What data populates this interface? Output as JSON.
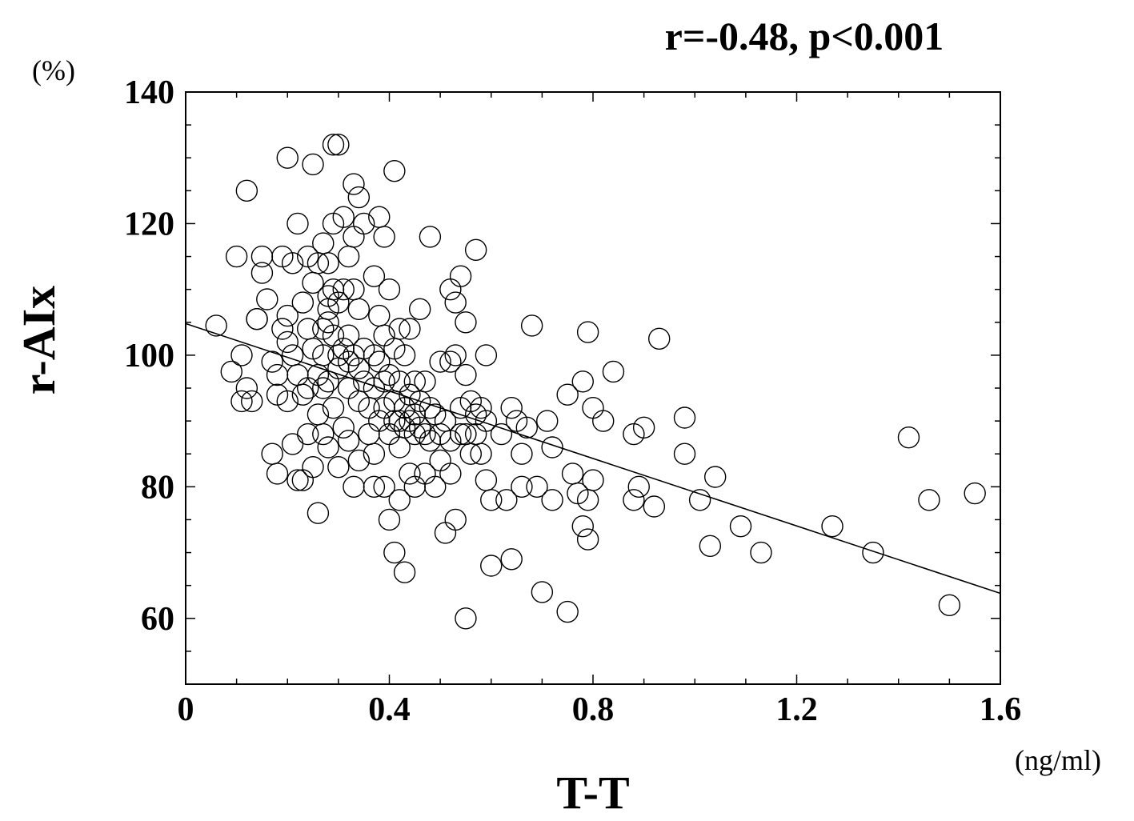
{
  "chart_data": {
    "type": "scatter",
    "annotation": "r=-0.48, p<0.001",
    "xlabel": "T-T",
    "ylabel": "r-AIx",
    "x_unit": "(ng/ml)",
    "y_unit": "(%)",
    "xlim": [
      0,
      1.6
    ],
    "ylim": [
      50,
      140
    ],
    "xticks": [
      {
        "value": 0,
        "label": "0"
      },
      {
        "value": 0.4,
        "label": "0.4"
      },
      {
        "value": 0.8,
        "label": "0.8"
      },
      {
        "value": 1.2,
        "label": "1.2"
      },
      {
        "value": 1.6,
        "label": "1.6"
      }
    ],
    "yticks": [
      {
        "value": 60,
        "label": "60"
      },
      {
        "value": 80,
        "label": "80"
      },
      {
        "value": 100,
        "label": "100"
      },
      {
        "value": 120,
        "label": "120"
      },
      {
        "value": 140,
        "label": "140"
      }
    ],
    "regression_line": [
      [
        0,
        104.8
      ],
      [
        1.6,
        63.8
      ]
    ],
    "points": [
      [
        0.06,
        104.5
      ],
      [
        0.09,
        97.5
      ],
      [
        0.1,
        115
      ],
      [
        0.11,
        100
      ],
      [
        0.11,
        93
      ],
      [
        0.12,
        95
      ],
      [
        0.12,
        125
      ],
      [
        0.13,
        93
      ],
      [
        0.14,
        105.5
      ],
      [
        0.14,
        105.5
      ],
      [
        0.15,
        115
      ],
      [
        0.15,
        112.5
      ],
      [
        0.16,
        108.5
      ],
      [
        0.17,
        99
      ],
      [
        0.17,
        85
      ],
      [
        0.18,
        97
      ],
      [
        0.18,
        82
      ],
      [
        0.18,
        94
      ],
      [
        0.19,
        104
      ],
      [
        0.19,
        115
      ],
      [
        0.2,
        106
      ],
      [
        0.2,
        102
      ],
      [
        0.2,
        93
      ],
      [
        0.2,
        130
      ],
      [
        0.21,
        114
      ],
      [
        0.21,
        100
      ],
      [
        0.21,
        86.5
      ],
      [
        0.22,
        81
      ],
      [
        0.22,
        97
      ],
      [
        0.22,
        120
      ],
      [
        0.23,
        108
      ],
      [
        0.23,
        94
      ],
      [
        0.23,
        81
      ],
      [
        0.24,
        115
      ],
      [
        0.24,
        104
      ],
      [
        0.24,
        88
      ],
      [
        0.24,
        95
      ],
      [
        0.25,
        111
      ],
      [
        0.25,
        101
      ],
      [
        0.25,
        83
      ],
      [
        0.25,
        129
      ],
      [
        0.26,
        114
      ],
      [
        0.26,
        91
      ],
      [
        0.26,
        97
      ],
      [
        0.26,
        76
      ],
      [
        0.27,
        117
      ],
      [
        0.27,
        104
      ],
      [
        0.27,
        100
      ],
      [
        0.27,
        88
      ],
      [
        0.27,
        95
      ],
      [
        0.28,
        114
      ],
      [
        0.28,
        109
      ],
      [
        0.28,
        107
      ],
      [
        0.28,
        105
      ],
      [
        0.28,
        96
      ],
      [
        0.28,
        86
      ],
      [
        0.29,
        110
      ],
      [
        0.29,
        103
      ],
      [
        0.29,
        92
      ],
      [
        0.29,
        120
      ],
      [
        0.29,
        132
      ],
      [
        0.3,
        108
      ],
      [
        0.3,
        100
      ],
      [
        0.3,
        98
      ],
      [
        0.3,
        83
      ],
      [
        0.3,
        132
      ],
      [
        0.31,
        121
      ],
      [
        0.31,
        110
      ],
      [
        0.31,
        101
      ],
      [
        0.31,
        89
      ],
      [
        0.32,
        115
      ],
      [
        0.32,
        103
      ],
      [
        0.32,
        99
      ],
      [
        0.32,
        95
      ],
      [
        0.32,
        87
      ],
      [
        0.33,
        118
      ],
      [
        0.33,
        110
      ],
      [
        0.33,
        100
      ],
      [
        0.33,
        80
      ],
      [
        0.33,
        126
      ],
      [
        0.34,
        124
      ],
      [
        0.34,
        107
      ],
      [
        0.34,
        98
      ],
      [
        0.34,
        93
      ],
      [
        0.34,
        84
      ],
      [
        0.35,
        120
      ],
      [
        0.35,
        101
      ],
      [
        0.35,
        96
      ],
      [
        0.36,
        92
      ],
      [
        0.36,
        88
      ],
      [
        0.37,
        112
      ],
      [
        0.37,
        100
      ],
      [
        0.37,
        95
      ],
      [
        0.37,
        85
      ],
      [
        0.37,
        80
      ],
      [
        0.38,
        106
      ],
      [
        0.38,
        99
      ],
      [
        0.38,
        90
      ],
      [
        0.38,
        121
      ],
      [
        0.39,
        118
      ],
      [
        0.39,
        103
      ],
      [
        0.39,
        96
      ],
      [
        0.39,
        92
      ],
      [
        0.39,
        80
      ],
      [
        0.4,
        110
      ],
      [
        0.4,
        97
      ],
      [
        0.4,
        88
      ],
      [
        0.4,
        75
      ],
      [
        0.41,
        101
      ],
      [
        0.41,
        93
      ],
      [
        0.41,
        90
      ],
      [
        0.41,
        70
      ],
      [
        0.41,
        128
      ],
      [
        0.42,
        104
      ],
      [
        0.42,
        96
      ],
      [
        0.42,
        90
      ],
      [
        0.42,
        86
      ],
      [
        0.42,
        78
      ],
      [
        0.43,
        100
      ],
      [
        0.43,
        92
      ],
      [
        0.43,
        89
      ],
      [
        0.43,
        67
      ],
      [
        0.44,
        104
      ],
      [
        0.44,
        94
      ],
      [
        0.44,
        90
      ],
      [
        0.44,
        82
      ],
      [
        0.45,
        96
      ],
      [
        0.45,
        91
      ],
      [
        0.45,
        88
      ],
      [
        0.45,
        80
      ],
      [
        0.46,
        107
      ],
      [
        0.46,
        93
      ],
      [
        0.46,
        89
      ],
      [
        0.47,
        96
      ],
      [
        0.47,
        88
      ],
      [
        0.47,
        82
      ],
      [
        0.48,
        118
      ],
      [
        0.48,
        92
      ],
      [
        0.48,
        87
      ],
      [
        0.49,
        91
      ],
      [
        0.49,
        80
      ],
      [
        0.5,
        99
      ],
      [
        0.5,
        88
      ],
      [
        0.5,
        84
      ],
      [
        0.51,
        90
      ],
      [
        0.51,
        73
      ],
      [
        0.52,
        110
      ],
      [
        0.52,
        99
      ],
      [
        0.52,
        87
      ],
      [
        0.52,
        82
      ],
      [
        0.53,
        108
      ],
      [
        0.53,
        100
      ],
      [
        0.53,
        75
      ],
      [
        0.54,
        112
      ],
      [
        0.54,
        92
      ],
      [
        0.54,
        88
      ],
      [
        0.55,
        105
      ],
      [
        0.55,
        97
      ],
      [
        0.55,
        88
      ],
      [
        0.55,
        60
      ],
      [
        0.56,
        93
      ],
      [
        0.56,
        85
      ],
      [
        0.57,
        116
      ],
      [
        0.57,
        91
      ],
      [
        0.57,
        88
      ],
      [
        0.58,
        92
      ],
      [
        0.58,
        85
      ],
      [
        0.59,
        100
      ],
      [
        0.59,
        90
      ],
      [
        0.59,
        81
      ],
      [
        0.6,
        78
      ],
      [
        0.6,
        68
      ],
      [
        0.62,
        88
      ],
      [
        0.63,
        78
      ],
      [
        0.64,
        92
      ],
      [
        0.64,
        69
      ],
      [
        0.65,
        90
      ],
      [
        0.66,
        85
      ],
      [
        0.66,
        80
      ],
      [
        0.67,
        89
      ],
      [
        0.68,
        104.5
      ],
      [
        0.69,
        80
      ],
      [
        0.7,
        64
      ],
      [
        0.71,
        90
      ],
      [
        0.72,
        86
      ],
      [
        0.72,
        78
      ],
      [
        0.75,
        94
      ],
      [
        0.75,
        61
      ],
      [
        0.76,
        82
      ],
      [
        0.77,
        79
      ],
      [
        0.78,
        96
      ],
      [
        0.78,
        74
      ],
      [
        0.79,
        103.5
      ],
      [
        0.79,
        78
      ],
      [
        0.79,
        72
      ],
      [
        0.8,
        81
      ],
      [
        0.8,
        92
      ],
      [
        0.82,
        90
      ],
      [
        0.84,
        97.5
      ],
      [
        0.88,
        88
      ],
      [
        0.88,
        78
      ],
      [
        0.89,
        80
      ],
      [
        0.9,
        89
      ],
      [
        0.92,
        77
      ],
      [
        0.93,
        102.5
      ],
      [
        0.98,
        90.5
      ],
      [
        0.98,
        85
      ],
      [
        1.01,
        78
      ],
      [
        1.03,
        71
      ],
      [
        1.04,
        81.5
      ],
      [
        1.09,
        74
      ],
      [
        1.13,
        70
      ],
      [
        1.27,
        74
      ],
      [
        1.35,
        70
      ],
      [
        1.42,
        87.5
      ],
      [
        1.46,
        78
      ],
      [
        1.5,
        62
      ],
      [
        1.55,
        79
      ]
    ]
  }
}
